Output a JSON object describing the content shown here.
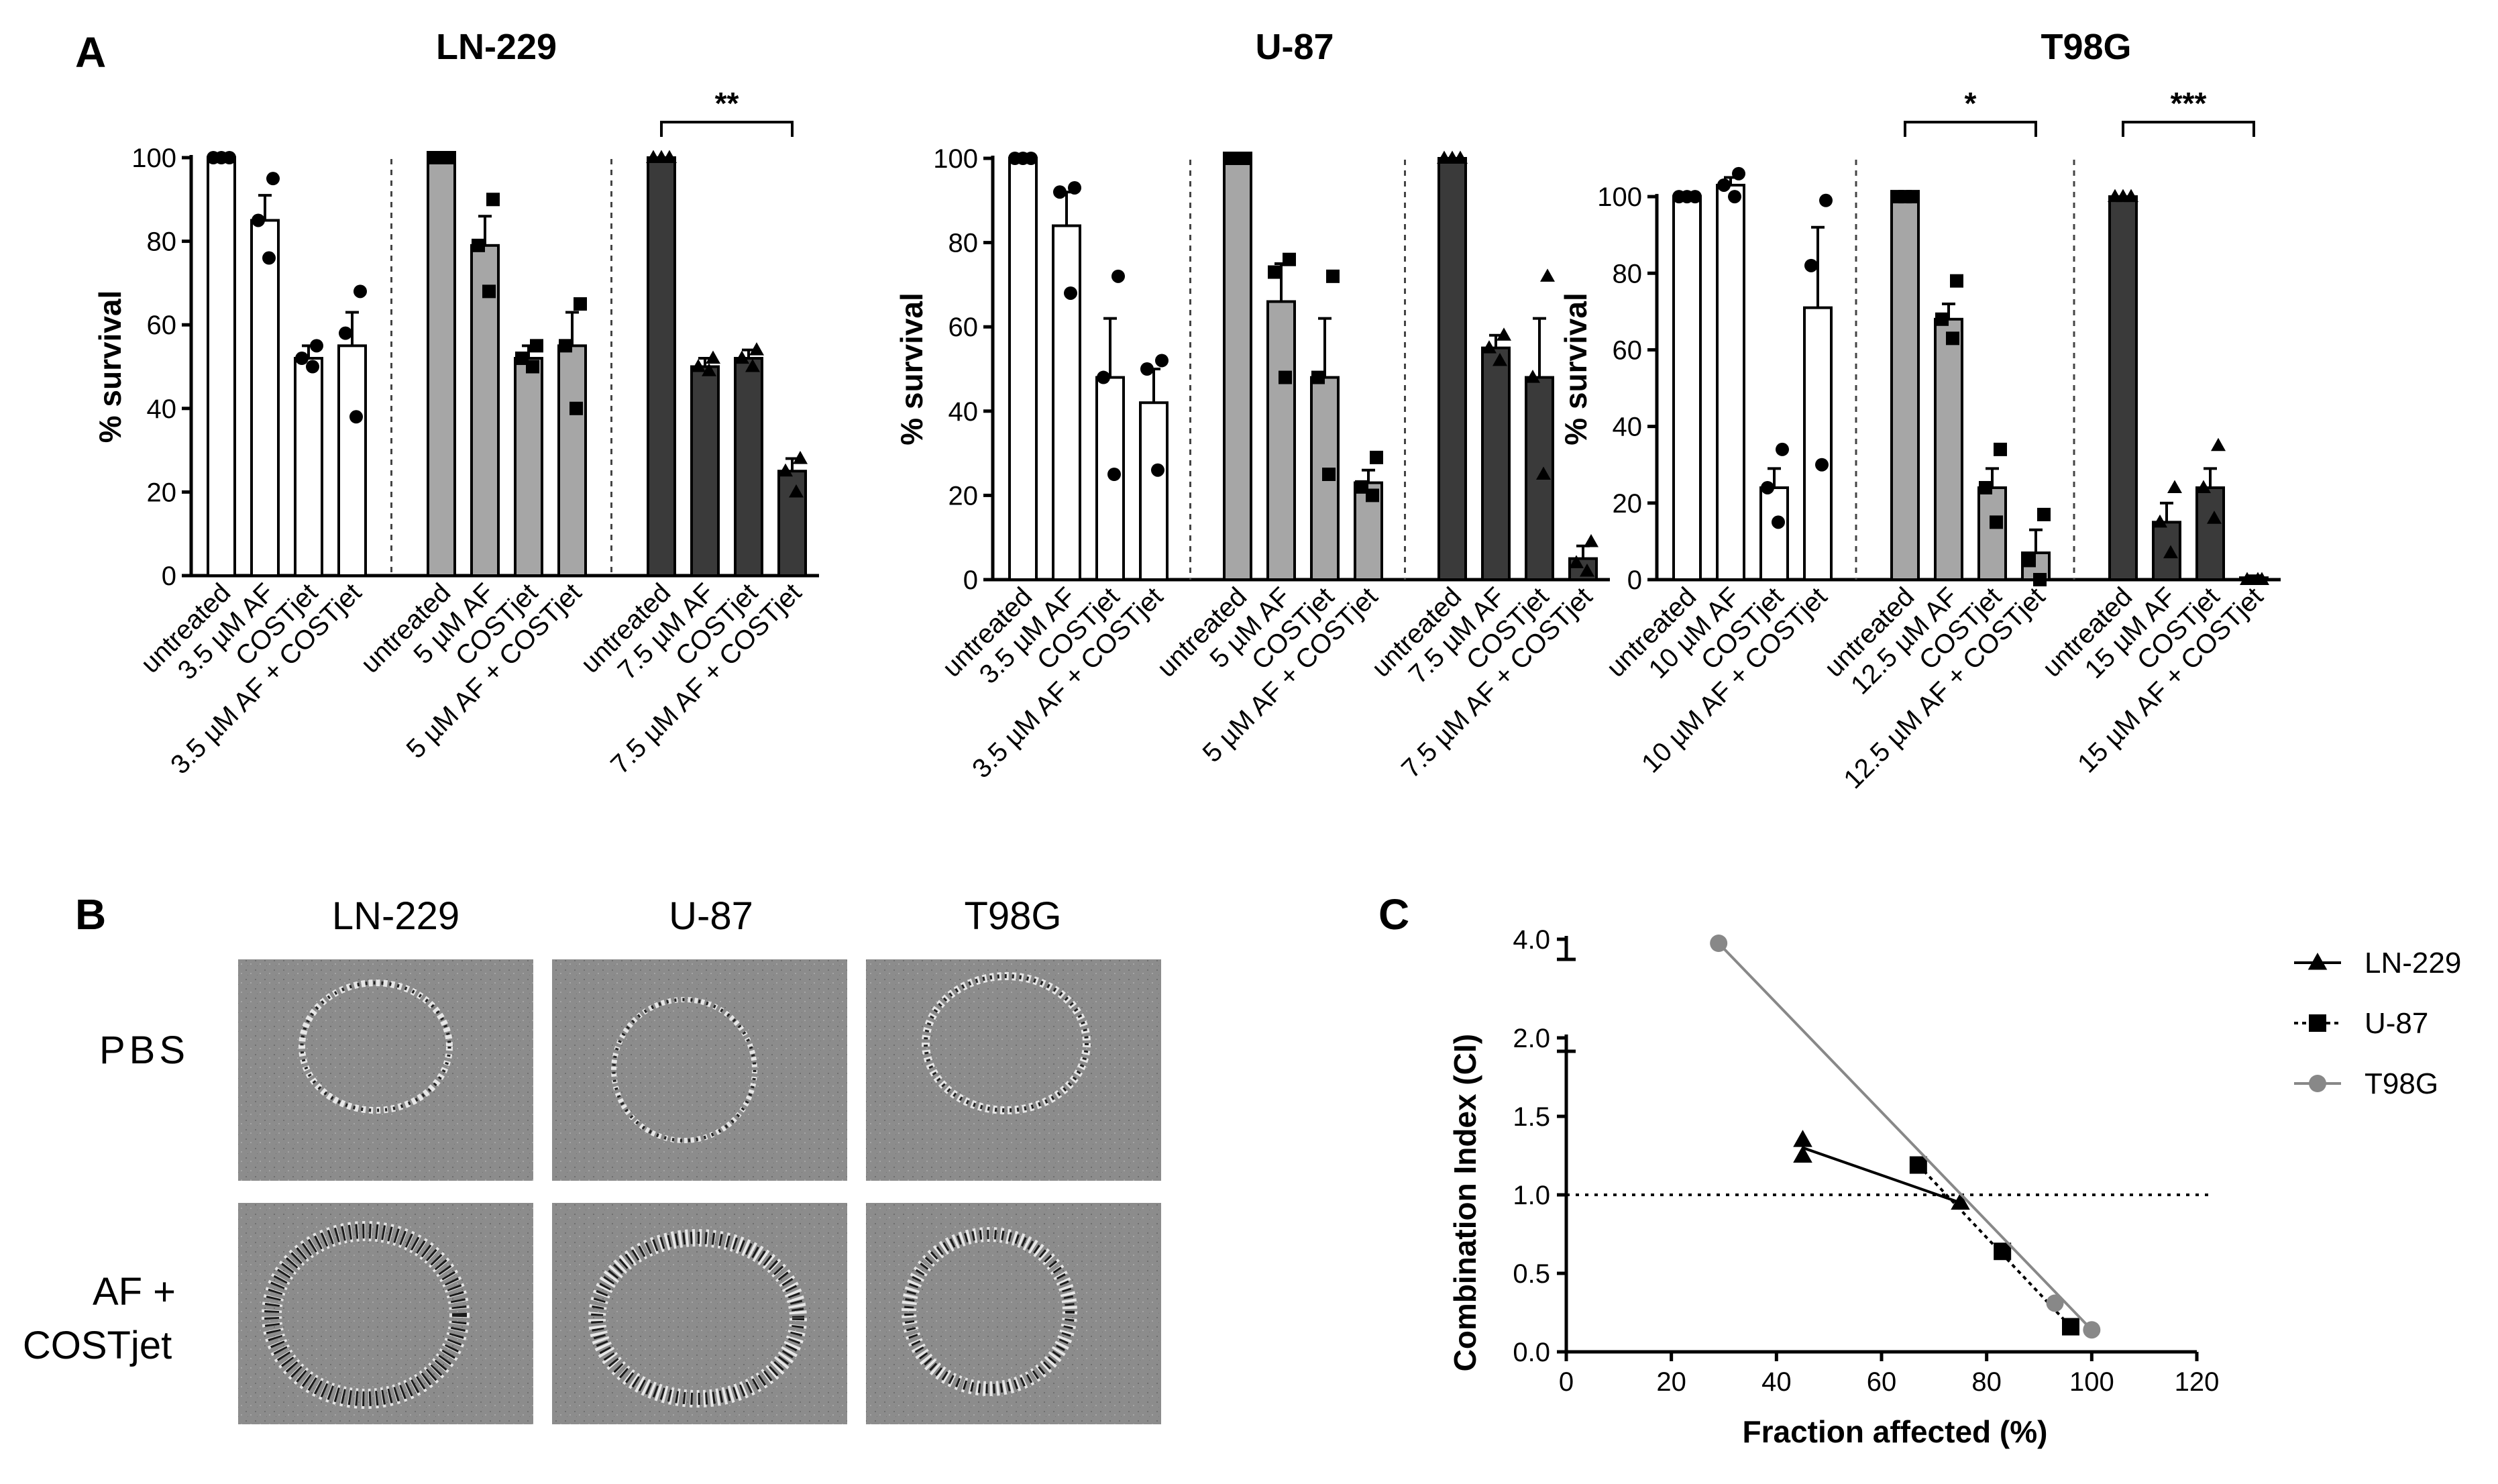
{
  "panel_labels": {
    "a": "A",
    "b": "B",
    "c": "C"
  },
  "chart_data": [
    {
      "type": "bar",
      "title": "LN-229",
      "ylabel": "% survival",
      "ylim": [
        0,
        100
      ],
      "yticks": [
        0,
        20,
        40,
        60,
        80,
        100
      ],
      "categories": [
        "untreated",
        "3.5 µM AF",
        "COSTjet",
        "3.5 µM AF + COSTjet",
        "untreated",
        "5 µM AF",
        "COSTjet",
        "5 µM AF + COSTjet",
        "untreated",
        "7.5 µM AF",
        "COSTjet",
        "7.5 µM AF + COSTjet"
      ],
      "groups": [
        {
          "fill": "#ffffff",
          "marker": "circle",
          "values": [
            100,
            85,
            52,
            55
          ],
          "sem": [
            0,
            6,
            3,
            8
          ],
          "points": [
            [
              100,
              100,
              100
            ],
            [
              76,
              85,
              95
            ],
            [
              50,
              52,
              55
            ],
            [
              38,
              58,
              68
            ]
          ]
        },
        {
          "fill": "#a6a6a6",
          "marker": "square",
          "values": [
            100,
            79,
            52,
            55
          ],
          "sem": [
            0,
            7,
            3,
            8
          ],
          "points": [
            [
              100,
              100,
              100
            ],
            [
              68,
              79,
              90
            ],
            [
              50,
              52,
              55
            ],
            [
              40,
              55,
              65
            ]
          ]
        },
        {
          "fill": "#3a3a3a",
          "marker": "triangle",
          "values": [
            100,
            50,
            52,
            25
          ],
          "sem": [
            0,
            2,
            2,
            3
          ],
          "points": [
            [
              100,
              100,
              100
            ],
            [
              49,
              50,
              52
            ],
            [
              50,
              52,
              54
            ],
            [
              20,
              25,
              28
            ]
          ]
        }
      ],
      "significance": [
        {
          "label": "**",
          "group": 2,
          "from": 0,
          "to": 3
        }
      ]
    },
    {
      "type": "bar",
      "title": "U-87",
      "ylabel": "% survival",
      "ylim": [
        0,
        100
      ],
      "yticks": [
        0,
        20,
        40,
        60,
        80,
        100
      ],
      "categories": [
        "untreated",
        "3.5 µM AF",
        "COSTjet",
        "3.5 µM AF + COSTjet",
        "untreated",
        "5 µM AF",
        "COSTjet",
        "5 µM AF + COSTjet",
        "untreated",
        "7.5 µM AF",
        "COSTjet",
        "7.5 µM AF + COSTjet"
      ],
      "groups": [
        {
          "fill": "#ffffff",
          "marker": "circle",
          "values": [
            100,
            84,
            48,
            42
          ],
          "sem": [
            0,
            8,
            14,
            8
          ],
          "points": [
            [
              100,
              100,
              100
            ],
            [
              68,
              92,
              93
            ],
            [
              25,
              48,
              72
            ],
            [
              26,
              50,
              52
            ]
          ]
        },
        {
          "fill": "#a6a6a6",
          "marker": "square",
          "values": [
            100,
            66,
            48,
            23
          ],
          "sem": [
            0,
            9,
            14,
            3
          ],
          "points": [
            [
              100,
              100,
              100
            ],
            [
              48,
              73,
              76
            ],
            [
              25,
              48,
              72
            ],
            [
              20,
              22,
              29
            ]
          ]
        },
        {
          "fill": "#3a3a3a",
          "marker": "triangle",
          "values": [
            100,
            55,
            48,
            5
          ],
          "sem": [
            0,
            3,
            14,
            3
          ],
          "points": [
            [
              100,
              100,
              100
            ],
            [
              52,
              55,
              58
            ],
            [
              25,
              48,
              72
            ],
            [
              2,
              4,
              9
            ]
          ]
        }
      ],
      "significance": []
    },
    {
      "type": "bar",
      "title": "T98G",
      "ylabel": "% survival",
      "ylim": [
        0,
        110
      ],
      "yticks": [
        0,
        20,
        40,
        60,
        80,
        100
      ],
      "categories": [
        "untreated",
        "10 µM AF",
        "COSTjet",
        "10 µM AF + COSTjet",
        "untreated",
        "12.5 µM AF",
        "COSTjet",
        "12.5 µM AF + COSTjet",
        "untreated",
        "15 µM AF",
        "COSTjet",
        "15 µM AF + COSTjet"
      ],
      "groups": [
        {
          "fill": "#ffffff",
          "marker": "circle",
          "values": [
            100,
            103,
            24,
            71
          ],
          "sem": [
            0,
            2,
            5,
            21
          ],
          "points": [
            [
              100,
              100,
              100
            ],
            [
              100,
              103,
              106
            ],
            [
              15,
              24,
              34
            ],
            [
              30,
              82,
              99
            ]
          ]
        },
        {
          "fill": "#a6a6a6",
          "marker": "square",
          "values": [
            100,
            68,
            24,
            7
          ],
          "sem": [
            0,
            4,
            5,
            6
          ],
          "points": [
            [
              100,
              100,
              100
            ],
            [
              63,
              68,
              78
            ],
            [
              15,
              24,
              34
            ],
            [
              0,
              5,
              17
            ]
          ]
        },
        {
          "fill": "#3a3a3a",
          "marker": "triangle",
          "values": [
            100,
            15,
            24,
            0.5
          ],
          "sem": [
            0,
            5,
            5,
            0.5
          ],
          "points": [
            [
              100,
              100,
              100
            ],
            [
              7,
              15,
              24
            ],
            [
              16,
              24,
              35
            ],
            [
              0,
              0,
              0
            ]
          ]
        }
      ],
      "significance": [
        {
          "label": "*",
          "group": 1,
          "from": 0,
          "to": 3
        },
        {
          "label": "***",
          "group": 2,
          "from": 0,
          "to": 3
        }
      ]
    },
    {
      "type": "scatter",
      "title": "",
      "xlabel": "Fraction affected (%)",
      "ylabel": "Combination Index (CI)",
      "xlim": [
        0,
        120
      ],
      "xticks": [
        0,
        20,
        40,
        60,
        80,
        100,
        120
      ],
      "yticks_lower": [
        0.0,
        0.5,
        1.0,
        1.5,
        2.0
      ],
      "yticks_upper": [
        4.0
      ],
      "reference_line": 1.0,
      "series": [
        {
          "name": "LN-229",
          "marker": "triangle",
          "color": "#000000",
          "line": "solid",
          "points": [
            {
              "x": 45,
              "y": 1.25
            },
            {
              "x": 45,
              "y": 1.35
            },
            {
              "x": 75,
              "y": 0.95
            }
          ],
          "fit": [
            {
              "x": 45,
              "y": 1.3
            },
            {
              "x": 75,
              "y": 0.95
            }
          ]
        },
        {
          "name": "U-87",
          "marker": "square",
          "color": "#000000",
          "line": "dotted",
          "points": [
            {
              "x": 67,
              "y": 1.19
            },
            {
              "x": 83,
              "y": 0.64
            },
            {
              "x": 96,
              "y": 0.16
            }
          ],
          "fit": [
            {
              "x": 67,
              "y": 1.19
            },
            {
              "x": 96,
              "y": 0.16
            }
          ]
        },
        {
          "name": "T98G",
          "marker": "circle",
          "color": "#888888",
          "line": "solid",
          "points": [
            {
              "x": 29,
              "y": 3.9
            },
            {
              "x": 93,
              "y": 0.31
            },
            {
              "x": 100,
              "y": 0.14
            }
          ],
          "fit": [
            {
              "x": 29,
              "y": 3.9
            },
            {
              "x": 100,
              "y": 0.14
            }
          ]
        }
      ]
    }
  ],
  "image_grid": {
    "columns": [
      "LN-229",
      "U-87",
      "T98G"
    ],
    "rows": [
      "PBS",
      "AF +\nCOSTjet"
    ],
    "row_line1": [
      "PBS",
      "AF +"
    ],
    "row_line2": [
      "",
      "COSTjet"
    ]
  }
}
